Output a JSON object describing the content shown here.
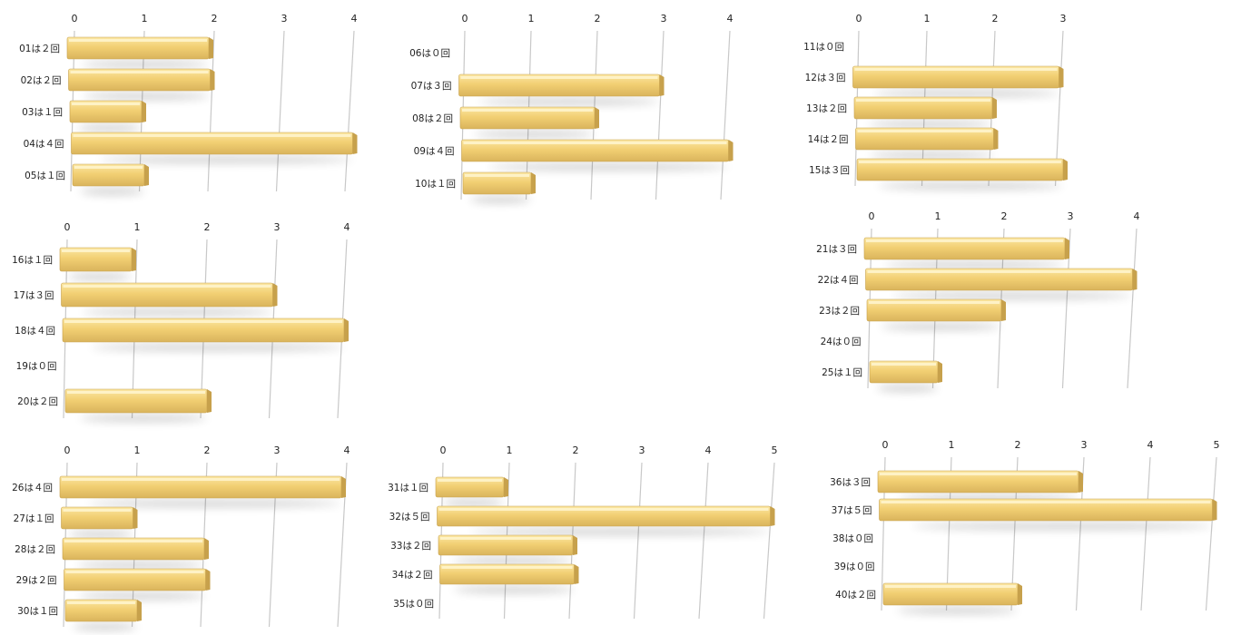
{
  "chart_data": [
    {
      "type": "bar",
      "categories": [
        "01は２回",
        "02は２回",
        "03は１回",
        "04は４回",
        "05は１回"
      ],
      "values": [
        2,
        2,
        1,
        4,
        1
      ],
      "ticks": [
        "0",
        "1",
        "2",
        "3",
        "4"
      ],
      "xlim": [
        0,
        4
      ],
      "grid": true
    },
    {
      "type": "bar",
      "categories": [
        "06は０回",
        "07は３回",
        "08は２回",
        "09は４回",
        "10は１回"
      ],
      "values": [
        0,
        3,
        2,
        4,
        1
      ],
      "ticks": [
        "0",
        "1",
        "2",
        "3",
        "4"
      ],
      "xlim": [
        0,
        4
      ],
      "grid": true
    },
    {
      "type": "bar",
      "categories": [
        "11は０回",
        "12は３回",
        "13は２回",
        "14は２回",
        "15は３回"
      ],
      "values": [
        0,
        3,
        2,
        2,
        3
      ],
      "ticks": [
        "0",
        "1",
        "2",
        "3"
      ],
      "xlim": [
        0,
        3
      ],
      "grid": true
    },
    {
      "type": "bar",
      "categories": [
        "16は１回",
        "17は３回",
        "18は４回",
        "19は０回",
        "20は２回"
      ],
      "values": [
        1,
        3,
        4,
        0,
        2
      ],
      "ticks": [
        "0",
        "1",
        "2",
        "3",
        "4"
      ],
      "xlim": [
        0,
        4
      ],
      "grid": true
    },
    {
      "type": "bar",
      "categories": [
        "21は３回",
        "22は４回",
        "23は２回",
        "24は０回",
        "25は１回"
      ],
      "values": [
        3,
        4,
        2,
        0,
        1
      ],
      "ticks": [
        "0",
        "1",
        "2",
        "3",
        "4"
      ],
      "xlim": [
        0,
        4
      ],
      "grid": true
    },
    {
      "type": "bar",
      "categories": [
        "26は４回",
        "27は１回",
        "28は２回",
        "29は２回",
        "30は１回"
      ],
      "values": [
        4,
        1,
        2,
        2,
        1
      ],
      "ticks": [
        "0",
        "1",
        "2",
        "3",
        "4"
      ],
      "xlim": [
        0,
        4
      ],
      "grid": true
    },
    {
      "type": "bar",
      "categories": [
        "31は１回",
        "32は５回",
        "33は２回",
        "34は２回",
        "35は０回"
      ],
      "values": [
        1,
        5,
        2,
        2,
        0
      ],
      "ticks": [
        "0",
        "1",
        "2",
        "3",
        "4",
        "5"
      ],
      "xlim": [
        0,
        5
      ],
      "grid": true
    },
    {
      "type": "bar",
      "categories": [
        "36は３回",
        "37は５回",
        "38は０回",
        "39は０回",
        "40は２回"
      ],
      "values": [
        3,
        5,
        0,
        0,
        2
      ],
      "ticks": [
        "0",
        "1",
        "2",
        "3",
        "4",
        "5"
      ],
      "xlim": [
        0,
        5
      ],
      "grid": true
    }
  ],
  "colors": {
    "bar_light": "#fbe7a4",
    "bar_mid": "#f2cf73",
    "bar_dark": "#d9b45c",
    "bar_end": "#c7a14c",
    "grid": "#c8c8c8"
  }
}
